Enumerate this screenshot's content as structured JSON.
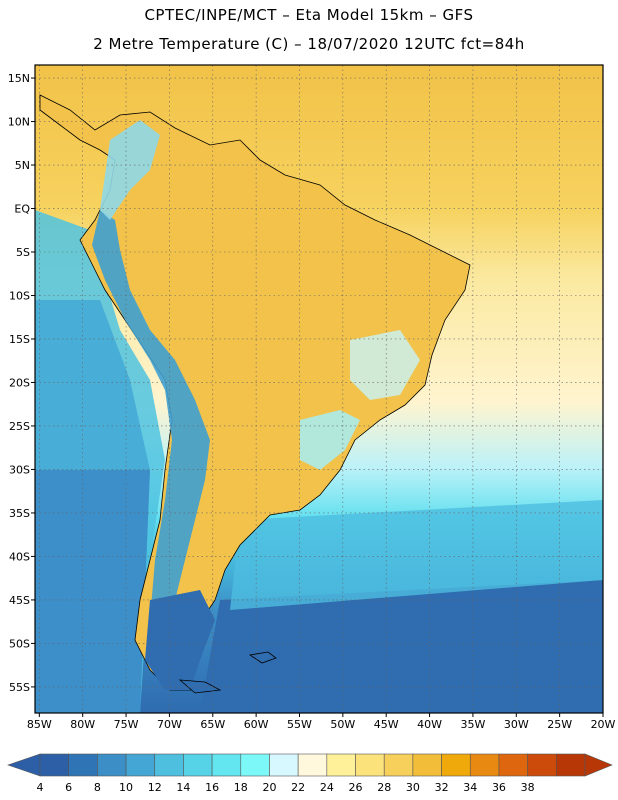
{
  "titles": {
    "line1": "CPTEC/INPE/MCT –  Eta Model 15km – GFS",
    "line2": "2 Metre Temperature (C) – 18/07/2020 12UTC fct=84h"
  },
  "map": {
    "lat_labels": [
      "15N",
      "10N",
      "5N",
      "EQ",
      "5S",
      "10S",
      "15S",
      "20S",
      "25S",
      "30S",
      "35S",
      "40S",
      "45S",
      "50S",
      "55S"
    ],
    "lon_labels": [
      "85W",
      "80W",
      "75W",
      "70W",
      "65W",
      "60W",
      "55W",
      "50W",
      "45W",
      "40W",
      "35W",
      "30W",
      "25W",
      "20W"
    ],
    "lat_values": [
      15,
      10,
      5,
      0,
      -5,
      -10,
      -15,
      -20,
      -25,
      -30,
      -35,
      -40,
      -45,
      -50,
      -55
    ],
    "lon_values": [
      -85,
      -80,
      -75,
      -70,
      -65,
      -60,
      -55,
      -50,
      -45,
      -40,
      -35,
      -30,
      -25,
      -20
    ],
    "lat_range": [
      -58,
      16.5
    ],
    "lon_range": [
      -85.5,
      -20
    ],
    "grid": "dotted"
  },
  "colorbar": {
    "labels": [
      "4",
      "6",
      "8",
      "10",
      "12",
      "14",
      "16",
      "18",
      "20",
      "22",
      "24",
      "26",
      "28",
      "30",
      "32",
      "34",
      "36",
      "38"
    ],
    "colors": [
      "#2d5fa6",
      "#2f75b5",
      "#3b8ec6",
      "#44a6d4",
      "#4ebfdf",
      "#57d3e8",
      "#63e6ef",
      "#7df8f8",
      "#d8f8ff",
      "#fff8dc",
      "#fff19a",
      "#fbe27a",
      "#f7d05c",
      "#f2be3a",
      "#f0a90a",
      "#e88a12",
      "#dd660e",
      "#cc4a0a",
      "#b83706"
    ],
    "low_color": "#2d5fa6",
    "high_color": "#b83706"
  }
}
